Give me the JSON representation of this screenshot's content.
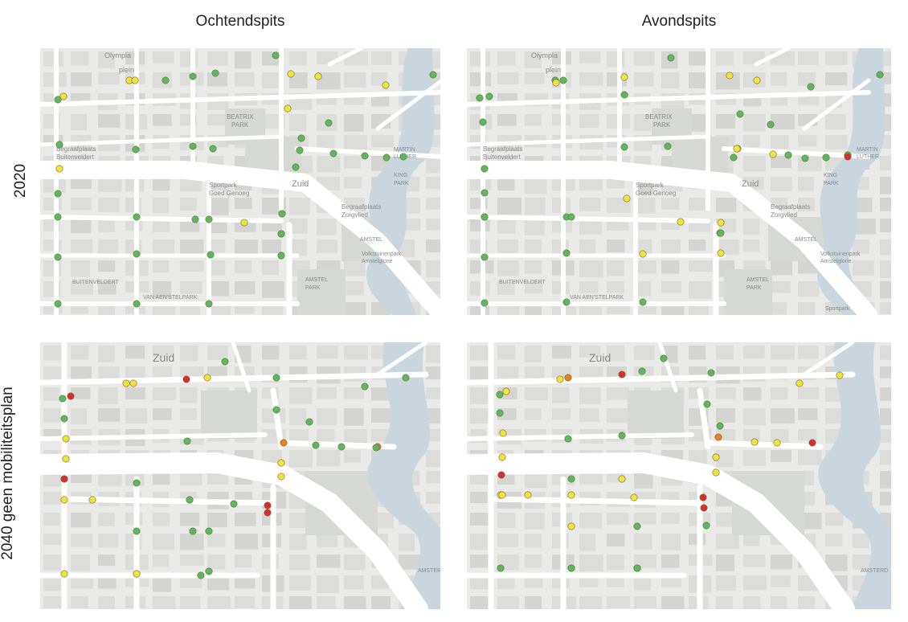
{
  "columns": [
    "Ochtendspits",
    "Avondspits"
  ],
  "rows": [
    "2020",
    "2040 geen mobiliteitsplan"
  ],
  "colors": {
    "green": "#5cb85c",
    "yellow": "#f2e23a",
    "orange": "#e8801e",
    "red": "#dd2c2c",
    "water": "#c9d6de",
    "road": "#ffffff",
    "block": "#dcdcdb",
    "park": "#d6d8d4"
  },
  "map_2020_labels": {
    "olympia": "Olympia",
    "plein": "plein",
    "beatrix": "BEATRIX",
    "park": "PARK",
    "begraaf": "Begraafplaats",
    "buitenv": "Buitenveldert",
    "sportpark": "Sportpark",
    "goedgenoeg": "Goed Genoeg",
    "zuid": "Zuid",
    "begraaf2": "Begraafplaats",
    "zorgvlied": "Zorgvlied",
    "king": "KING",
    "park2": "PARK",
    "martin": "MARTIN",
    "luther": "LUTHER",
    "amstel": "AMSTEL",
    "amstelpark": "AMSTEL",
    "park3": "PARK",
    "volkstuin": "Volkstuinenpark",
    "amstelglorie": "Amstelglorie",
    "buitenveldert2": "BUITENVELDERT",
    "aenstel": "VAN AEN'STELPARK",
    "sportpark2": "Sportpark"
  },
  "map_2040_labels": {
    "zuid": "Zuid",
    "amsterdam": "AMSTERD"
  },
  "markers": {
    "tl": [
      {
        "c": "green"
      },
      {
        "c": "yellow"
      },
      {
        "c": "yellow"
      },
      {
        "c": "green"
      },
      {
        "c": "green"
      },
      {
        "c": "green"
      },
      {
        "c": "yellow"
      },
      {
        "c": "yellow"
      },
      {
        "c": "yellow"
      },
      {
        "c": "green"
      },
      {
        "c": "yellow"
      },
      {
        "c": "green"
      },
      {
        "c": "yellow"
      },
      {
        "c": "green"
      },
      {
        "c": "green"
      },
      {
        "c": "green"
      },
      {
        "c": "green"
      },
      {
        "c": "green"
      },
      {
        "c": "green"
      },
      {
        "c": "green"
      },
      {
        "c": "green"
      },
      {
        "c": "green"
      },
      {
        "c": "green"
      },
      {
        "c": "green"
      },
      {
        "c": "yellow"
      },
      {
        "c": "green"
      },
      {
        "c": "green"
      },
      {
        "c": "green"
      },
      {
        "c": "green"
      },
      {
        "c": "green"
      },
      {
        "c": "green"
      },
      {
        "c": "green"
      },
      {
        "c": "green"
      },
      {
        "c": "green"
      },
      {
        "c": "yellow"
      },
      {
        "c": "green"
      },
      {
        "c": "green"
      },
      {
        "c": "green"
      },
      {
        "c": "green"
      },
      {
        "c": "green"
      },
      {
        "c": "green"
      },
      {
        "c": "green"
      },
      {
        "c": "green"
      }
    ],
    "tr": [
      {
        "c": "green"
      },
      {
        "c": "yellow"
      },
      {
        "c": "green"
      },
      {
        "c": "yellow"
      },
      {
        "c": "green"
      },
      {
        "c": "green"
      },
      {
        "c": "yellow"
      },
      {
        "c": "yellow"
      },
      {
        "c": "green"
      },
      {
        "c": "green"
      },
      {
        "c": "green"
      },
      {
        "c": "green"
      },
      {
        "c": "green"
      },
      {
        "c": "green"
      },
      {
        "c": "green"
      },
      {
        "c": "green"
      },
      {
        "c": "green"
      },
      {
        "c": "yellow"
      },
      {
        "c": "green"
      },
      {
        "c": "yellow"
      },
      {
        "c": "yellow"
      },
      {
        "c": "green"
      },
      {
        "c": "green"
      },
      {
        "c": "green"
      },
      {
        "c": "green"
      },
      {
        "c": "red"
      },
      {
        "c": "green"
      },
      {
        "c": "green"
      },
      {
        "c": "green"
      },
      {
        "c": "green"
      },
      {
        "c": "green"
      },
      {
        "c": "yellow"
      },
      {
        "c": "green"
      },
      {
        "c": "yellow"
      },
      {
        "c": "yellow"
      },
      {
        "c": "yellow"
      },
      {
        "c": "green"
      },
      {
        "c": "green"
      },
      {
        "c": "green"
      },
      {
        "c": "yellow"
      },
      {
        "c": "green"
      },
      {
        "c": "green"
      },
      {
        "c": "green"
      },
      {
        "c": "green"
      }
    ],
    "bl": [
      {
        "c": "green"
      },
      {
        "c": "red"
      },
      {
        "c": "yellow"
      },
      {
        "c": "yellow"
      },
      {
        "c": "red"
      },
      {
        "c": "yellow"
      },
      {
        "c": "green"
      },
      {
        "c": "green"
      },
      {
        "c": "green"
      },
      {
        "c": "green"
      },
      {
        "c": "green"
      },
      {
        "c": "yellow"
      },
      {
        "c": "green"
      },
      {
        "c": "green"
      },
      {
        "c": "green"
      },
      {
        "c": "orange"
      },
      {
        "c": "green"
      },
      {
        "c": "green"
      },
      {
        "c": "orange"
      },
      {
        "c": "green"
      },
      {
        "c": "yellow"
      },
      {
        "c": "green"
      },
      {
        "c": "yellow"
      },
      {
        "c": "red"
      },
      {
        "c": "yellow"
      },
      {
        "c": "yellow"
      },
      {
        "c": "green"
      },
      {
        "c": "yellow"
      },
      {
        "c": "green"
      },
      {
        "c": "green"
      },
      {
        "c": "red"
      },
      {
        "c": "red"
      },
      {
        "c": "green"
      },
      {
        "c": "green"
      },
      {
        "c": "green"
      },
      {
        "c": "yellow"
      },
      {
        "c": "yellow"
      },
      {
        "c": "green"
      },
      {
        "c": "green"
      },
      {
        "c": "yellow"
      },
      {
        "c": "green"
      }
    ],
    "br": [
      {
        "c": "green"
      },
      {
        "c": "yellow"
      },
      {
        "c": "yellow"
      },
      {
        "c": "orange"
      },
      {
        "c": "red"
      },
      {
        "c": "green"
      },
      {
        "c": "green"
      },
      {
        "c": "green"
      },
      {
        "c": "yellow"
      },
      {
        "c": "yellow"
      },
      {
        "c": "green"
      },
      {
        "c": "yellow"
      },
      {
        "c": "green"
      },
      {
        "c": "green"
      },
      {
        "c": "green"
      },
      {
        "c": "green"
      },
      {
        "c": "orange"
      },
      {
        "c": "yellow"
      },
      {
        "c": "red"
      },
      {
        "c": "yellow"
      },
      {
        "c": "yellow"
      },
      {
        "c": "red"
      },
      {
        "c": "yellow"
      },
      {
        "c": "yellow"
      },
      {
        "c": "yellow"
      },
      {
        "c": "yellow"
      },
      {
        "c": "yellow"
      },
      {
        "c": "red"
      },
      {
        "c": "red"
      },
      {
        "c": "green"
      },
      {
        "c": "green"
      },
      {
        "c": "green"
      },
      {
        "c": "green"
      },
      {
        "c": "yellow"
      },
      {
        "c": "green"
      },
      {
        "c": "yellow"
      },
      {
        "c": "green"
      },
      {
        "c": "yellow"
      },
      {
        "c": "yellow"
      },
      {
        "c": "green"
      }
    ]
  }
}
